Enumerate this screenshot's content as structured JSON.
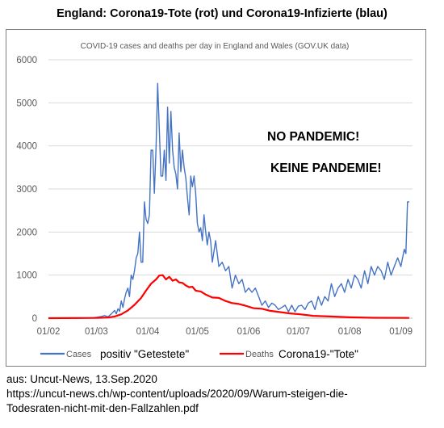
{
  "header": {
    "title": "England: Corona19-Tote (rot) und Corona19-Infizierte (blau)"
  },
  "overlays": {
    "line1": "NO PANDEMIC!",
    "line2": "KEINE PANDEMIE!"
  },
  "legend_extra": {
    "cases": "positiv \"Getestete\"",
    "deaths": "Corona19-\"Tote\""
  },
  "source": {
    "line1": "aus: Uncut-News, 13.Sep.2020",
    "line2": "https://uncut-news.ch/wp-content/uploads/2020/09/Warum-steigen-die-",
    "line3": "Todesraten-nicht-mit-den-Fallzahlen.pdf"
  },
  "colors": {
    "cases": "#4472c4",
    "deaths": "#ff0000",
    "grid": "#d9d9d9",
    "axis_text": "#595959"
  },
  "chart_data": {
    "type": "line",
    "title": "COVID-19 cases and deaths per day in England and Wales (GOV.UK data)",
    "xlabel": "",
    "ylabel": "",
    "x_ticks": [
      "01/02",
      "01/03",
      "01/04",
      "01/05",
      "01/06",
      "01/07",
      "01/08",
      "01/09"
    ],
    "y_ticks": [
      0,
      1000,
      2000,
      3000,
      4000,
      5000,
      6000
    ],
    "ylim": [
      0,
      6000
    ],
    "grid": "horizontal",
    "legend_position": "bottom",
    "series": [
      {
        "name": "Cases",
        "color": "#4472c4",
        "x": [
          "2020-02-01",
          "2020-02-10",
          "2020-02-20",
          "2020-02-25",
          "2020-02-28",
          "2020-03-01",
          "2020-03-04",
          "2020-03-06",
          "2020-03-08",
          "2020-03-10",
          "2020-03-12",
          "2020-03-13",
          "2020-03-14",
          "2020-03-15",
          "2020-03-16",
          "2020-03-17",
          "2020-03-18",
          "2020-03-19",
          "2020-03-20",
          "2020-03-21",
          "2020-03-22",
          "2020-03-23",
          "2020-03-24",
          "2020-03-25",
          "2020-03-26",
          "2020-03-27",
          "2020-03-28",
          "2020-03-29",
          "2020-03-30",
          "2020-03-31",
          "2020-04-01",
          "2020-04-02",
          "2020-04-03",
          "2020-04-04",
          "2020-04-05",
          "2020-04-06",
          "2020-04-07",
          "2020-04-08",
          "2020-04-09",
          "2020-04-10",
          "2020-04-11",
          "2020-04-12",
          "2020-04-13",
          "2020-04-14",
          "2020-04-15",
          "2020-04-16",
          "2020-04-17",
          "2020-04-18",
          "2020-04-19",
          "2020-04-20",
          "2020-04-21",
          "2020-04-22",
          "2020-04-23",
          "2020-04-24",
          "2020-04-25",
          "2020-04-26",
          "2020-04-27",
          "2020-04-28",
          "2020-04-29",
          "2020-04-30",
          "2020-05-01",
          "2020-05-02",
          "2020-05-03",
          "2020-05-04",
          "2020-05-05",
          "2020-05-06",
          "2020-05-07",
          "2020-05-08",
          "2020-05-09",
          "2020-05-10",
          "2020-05-12",
          "2020-05-14",
          "2020-05-16",
          "2020-05-18",
          "2020-05-20",
          "2020-05-22",
          "2020-05-24",
          "2020-05-26",
          "2020-05-28",
          "2020-05-30",
          "2020-06-01",
          "2020-06-03",
          "2020-06-05",
          "2020-06-07",
          "2020-06-09",
          "2020-06-11",
          "2020-06-13",
          "2020-06-15",
          "2020-06-17",
          "2020-06-19",
          "2020-06-21",
          "2020-06-23",
          "2020-06-25",
          "2020-06-27",
          "2020-06-29",
          "2020-07-01",
          "2020-07-03",
          "2020-07-05",
          "2020-07-07",
          "2020-07-09",
          "2020-07-11",
          "2020-07-13",
          "2020-07-15",
          "2020-07-17",
          "2020-07-19",
          "2020-07-21",
          "2020-07-23",
          "2020-07-25",
          "2020-07-27",
          "2020-07-29",
          "2020-07-31",
          "2020-08-02",
          "2020-08-04",
          "2020-08-06",
          "2020-08-08",
          "2020-08-10",
          "2020-08-12",
          "2020-08-14",
          "2020-08-16",
          "2020-08-18",
          "2020-08-20",
          "2020-08-22",
          "2020-08-24",
          "2020-08-26",
          "2020-08-28",
          "2020-08-30",
          "2020-09-01",
          "2020-09-02",
          "2020-09-03",
          "2020-09-04",
          "2020-09-05",
          "2020-09-06"
        ],
        "y": [
          0,
          0,
          0,
          5,
          10,
          20,
          40,
          60,
          30,
          100,
          180,
          100,
          220,
          160,
          400,
          250,
          450,
          600,
          700,
          500,
          1000,
          900,
          1100,
          1400,
          1500,
          2000,
          1300,
          1300,
          2700,
          2300,
          2200,
          2400,
          3900,
          3900,
          2900,
          3950,
          5450,
          4400,
          3300,
          3300,
          3900,
          3200,
          4900,
          3600,
          4800,
          3900,
          3500,
          3350,
          3000,
          4300,
          3400,
          3900,
          3500,
          3250,
          2800,
          2400,
          3300,
          3050,
          3300,
          2900,
          2200,
          2000,
          2100,
          1800,
          2400,
          2000,
          1700,
          2000,
          1800,
          1300,
          1800,
          1200,
          1300,
          1100,
          1200,
          700,
          1000,
          800,
          900,
          600,
          700,
          600,
          700,
          500,
          300,
          400,
          250,
          350,
          300,
          200,
          250,
          300,
          150,
          300,
          150,
          280,
          300,
          200,
          350,
          400,
          200,
          500,
          300,
          500,
          400,
          800,
          500,
          700,
          800,
          600,
          900,
          700,
          1000,
          900,
          700,
          1100,
          800,
          1200,
          1000,
          1200,
          1100,
          900,
          1300,
          1000,
          1200,
          1400,
          1200,
          1400,
          1600,
          1500,
          2700,
          2700
        ]
      },
      {
        "name": "Deaths",
        "color": "#ff0000",
        "x": [
          "2020-02-01",
          "2020-03-01",
          "2020-03-08",
          "2020-03-12",
          "2020-03-16",
          "2020-03-20",
          "2020-03-24",
          "2020-03-28",
          "2020-03-31",
          "2020-04-03",
          "2020-04-06",
          "2020-04-08",
          "2020-04-10",
          "2020-04-12",
          "2020-04-14",
          "2020-04-16",
          "2020-04-18",
          "2020-04-20",
          "2020-04-22",
          "2020-04-24",
          "2020-04-26",
          "2020-04-28",
          "2020-04-30",
          "2020-05-03",
          "2020-05-06",
          "2020-05-10",
          "2020-05-14",
          "2020-05-18",
          "2020-05-22",
          "2020-05-26",
          "2020-05-30",
          "2020-06-04",
          "2020-06-09",
          "2020-06-14",
          "2020-06-20",
          "2020-06-26",
          "2020-07-02",
          "2020-07-10",
          "2020-07-20",
          "2020-08-01",
          "2020-08-15",
          "2020-09-06"
        ],
        "y": [
          0,
          5,
          15,
          40,
          90,
          180,
          310,
          470,
          640,
          800,
          900,
          990,
          1000,
          900,
          960,
          870,
          900,
          830,
          820,
          760,
          720,
          730,
          640,
          620,
          550,
          480,
          470,
          400,
          350,
          330,
          290,
          230,
          220,
          170,
          140,
          110,
          90,
          55,
          40,
          20,
          10,
          5
        ]
      }
    ]
  }
}
